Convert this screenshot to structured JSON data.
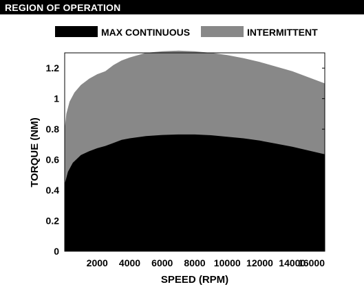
{
  "header": {
    "title": "REGION OF OPERATION"
  },
  "chart_data": {
    "type": "area",
    "title": "",
    "xlabel": "SPEED (RPM)",
    "ylabel": "TORQUE (NM)",
    "xlim": [
      0,
      16000
    ],
    "ylim": [
      0,
      1.3
    ],
    "x_ticks": [
      2000,
      4000,
      6000,
      8000,
      10000,
      12000,
      14000,
      16000
    ],
    "x_tick_labels": [
      "2000",
      "4000",
      "6000",
      "8000",
      "10000",
      "12000",
      "14000",
      "16000"
    ],
    "y_ticks": [
      0,
      0.2,
      0.4,
      0.6,
      0.8,
      1,
      1.2
    ],
    "y_tick_labels": [
      "0",
      "0.2",
      "0.4",
      "0.6",
      "0.8",
      "1",
      "1.2"
    ],
    "grid": false,
    "legend_position": "top",
    "series": [
      {
        "name": "MAX CONTINUOUS",
        "color": "#000000",
        "x": [
          0,
          200,
          500,
          1000,
          1500,
          2000,
          2500,
          3000,
          3500,
          4000,
          5000,
          6000,
          7000,
          8000,
          9000,
          10000,
          11000,
          12000,
          13000,
          14000,
          15000,
          16000
        ],
        "values": [
          0.44,
          0.52,
          0.58,
          0.63,
          0.655,
          0.675,
          0.69,
          0.71,
          0.73,
          0.74,
          0.755,
          0.762,
          0.765,
          0.765,
          0.76,
          0.75,
          0.74,
          0.725,
          0.705,
          0.685,
          0.66,
          0.635
        ]
      },
      {
        "name": "INTERMITTENT",
        "color": "#888888",
        "x": [
          0,
          100,
          300,
          600,
          1000,
          1500,
          2000,
          2500,
          3000,
          3500,
          4000,
          5000,
          6000,
          7000,
          8000,
          9000,
          10000,
          11000,
          12000,
          13000,
          14000,
          15000,
          16000
        ],
        "values": [
          0.8,
          0.9,
          0.98,
          1.04,
          1.09,
          1.13,
          1.16,
          1.18,
          1.22,
          1.25,
          1.27,
          1.3,
          1.31,
          1.315,
          1.31,
          1.3,
          1.285,
          1.265,
          1.24,
          1.21,
          1.18,
          1.14,
          1.1
        ]
      }
    ]
  }
}
